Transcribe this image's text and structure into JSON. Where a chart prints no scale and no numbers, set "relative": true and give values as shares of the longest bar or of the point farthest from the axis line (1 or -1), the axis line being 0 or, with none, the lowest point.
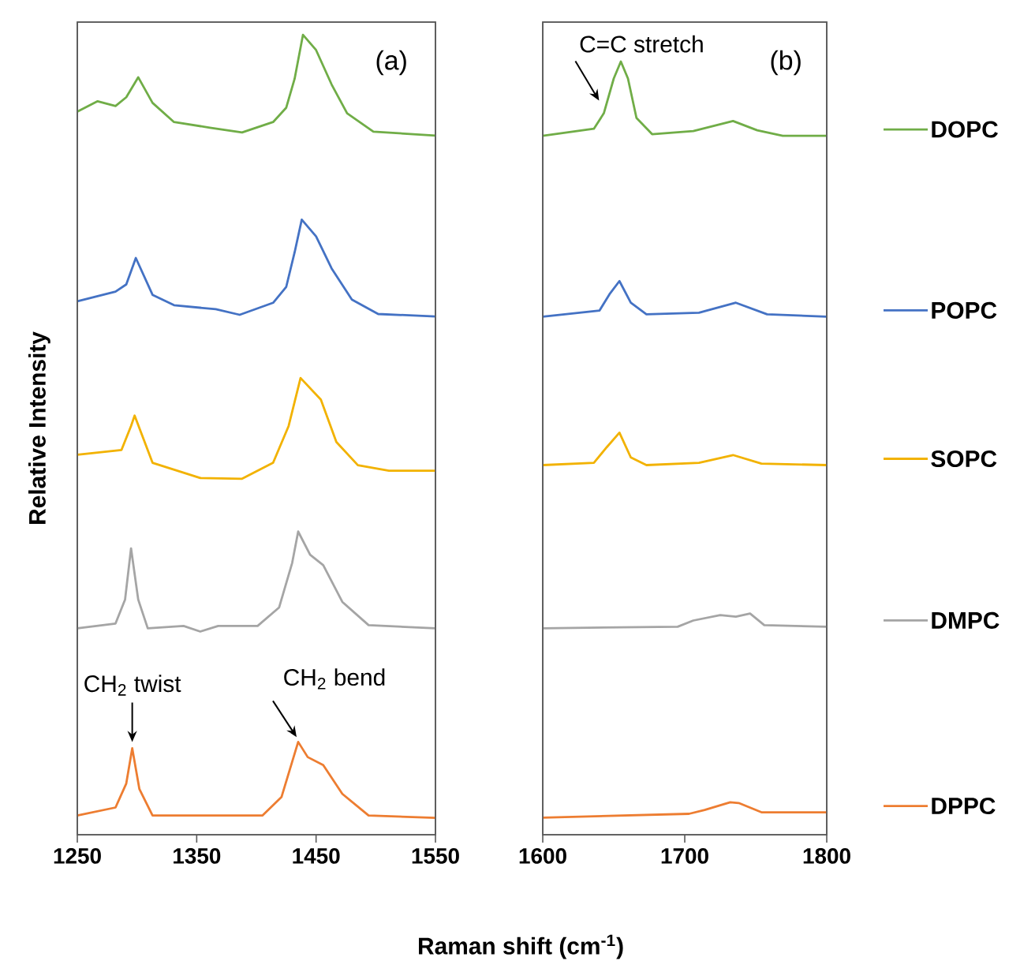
{
  "chart_data": [
    {
      "type": "line",
      "relative": true,
      "ylabel": "Relative Intensity",
      "xlabel": "Raman shift (cm$^{-1}$)",
      "xlim": [
        1250,
        1550
      ],
      "xticks": [
        1250,
        1350,
        1450,
        1550
      ],
      "marker": "none",
      "annotations": [
        "(a)",
        {
          "text": "CH$_{2}$ twist",
          "x": 1296,
          "y": 0.108
        },
        {
          "text": "CH$_{2}$ bend",
          "x": 1435,
          "y": 0.116
        }
      ],
      "series": [
        {
          "color": "#70ad47",
          "x": [
            1250,
            1267,
            1282,
            1291,
            1301,
            1313,
            1331,
            1361,
            1388,
            1414,
            1425,
            1432,
            1439,
            1450,
            1463,
            1476,
            1498,
            1550
          ],
          "values": [
            0.904,
            0.917,
            0.911,
            0.922,
            0.947,
            0.915,
            0.891,
            0.884,
            0.878,
            0.891,
            0.909,
            0.945,
            1.0,
            0.981,
            0.938,
            0.902,
            0.879,
            0.874
          ]
        },
        {
          "color": "#4472c4",
          "x": [
            1250,
            1282,
            1291,
            1299,
            1313,
            1331,
            1366,
            1386,
            1414,
            1425,
            1432,
            1438,
            1450,
            1463,
            1480,
            1502,
            1550
          ],
          "values": [
            0.667,
            0.679,
            0.688,
            0.721,
            0.675,
            0.662,
            0.657,
            0.65,
            0.665,
            0.685,
            0.728,
            0.769,
            0.748,
            0.708,
            0.669,
            0.651,
            0.648
          ]
        },
        {
          "color": "#f2b200",
          "x": [
            1250,
            1287,
            1295,
            1298,
            1313,
            1353,
            1388,
            1414,
            1427,
            1437,
            1454,
            1467,
            1485,
            1511,
            1550
          ],
          "values": [
            0.475,
            0.481,
            0.511,
            0.524,
            0.465,
            0.446,
            0.445,
            0.465,
            0.511,
            0.571,
            0.544,
            0.491,
            0.462,
            0.455,
            0.455
          ]
        },
        {
          "color": "#a5a5a5",
          "x": [
            1250,
            1282,
            1290,
            1295,
            1301,
            1309,
            1339,
            1353,
            1368,
            1401,
            1419,
            1430,
            1435,
            1445,
            1456,
            1472,
            1494,
            1550
          ],
          "values": [
            0.258,
            0.264,
            0.294,
            0.358,
            0.294,
            0.258,
            0.261,
            0.254,
            0.261,
            0.261,
            0.284,
            0.34,
            0.379,
            0.35,
            0.337,
            0.291,
            0.262,
            0.258
          ]
        },
        {
          "color": "#ed7d31",
          "x": [
            1250,
            1282,
            1291,
            1296,
            1302,
            1313,
            1339,
            1370,
            1405,
            1421,
            1435,
            1443,
            1456,
            1472,
            1494,
            1550
          ],
          "values": [
            0.024,
            0.034,
            0.064,
            0.108,
            0.057,
            0.024,
            0.024,
            0.024,
            0.024,
            0.047,
            0.116,
            0.097,
            0.087,
            0.051,
            0.024,
            0.021
          ]
        }
      ]
    },
    {
      "type": "line",
      "relative": true,
      "xlim": [
        1600,
        1800
      ],
      "xticks": [
        1600,
        1700,
        1800
      ],
      "marker": "none",
      "legend": "right",
      "annotations": [
        "(b)",
        {
          "text": "C=C stretch",
          "x": 1643,
          "y": 0.933
        }
      ],
      "series": [
        {
          "name": "DOPC",
          "color": "#70ad47",
          "x": [
            1600,
            1636,
            1643,
            1650,
            1655,
            1660,
            1666,
            1677,
            1706,
            1734,
            1751,
            1769,
            1800
          ],
          "values": [
            0.904,
            0.913,
            0.933,
            0.978,
            1.0,
            0.978,
            0.927,
            0.906,
            0.91,
            0.923,
            0.911,
            0.904,
            0.904
          ]
        },
        {
          "name": "POPC",
          "color": "#4472c4",
          "x": [
            1600,
            1640,
            1647,
            1654,
            1662,
            1673,
            1710,
            1736,
            1758,
            1800
          ],
          "values": [
            0.67,
            0.678,
            0.699,
            0.716,
            0.688,
            0.673,
            0.675,
            0.688,
            0.673,
            0.67
          ]
        },
        {
          "name": "SOPC",
          "color": "#f2b200",
          "x": [
            1600,
            1636,
            1645,
            1654,
            1662,
            1673,
            1710,
            1734,
            1754,
            1800
          ],
          "values": [
            0.478,
            0.481,
            0.501,
            0.52,
            0.488,
            0.478,
            0.481,
            0.491,
            0.48,
            0.478
          ]
        },
        {
          "name": "DMPC",
          "color": "#a5a5a5",
          "x": [
            1600,
            1695,
            1706,
            1725,
            1736,
            1746,
            1756,
            1800
          ],
          "values": [
            0.267,
            0.269,
            0.277,
            0.284,
            0.282,
            0.286,
            0.271,
            0.269
          ]
        },
        {
          "name": "DPPC",
          "color": "#ed7d31",
          "x": [
            1600,
            1703,
            1714,
            1732,
            1738,
            1754,
            1800
          ],
          "values": [
            0.022,
            0.027,
            0.032,
            0.042,
            0.041,
            0.029,
            0.029
          ]
        }
      ]
    }
  ]
}
